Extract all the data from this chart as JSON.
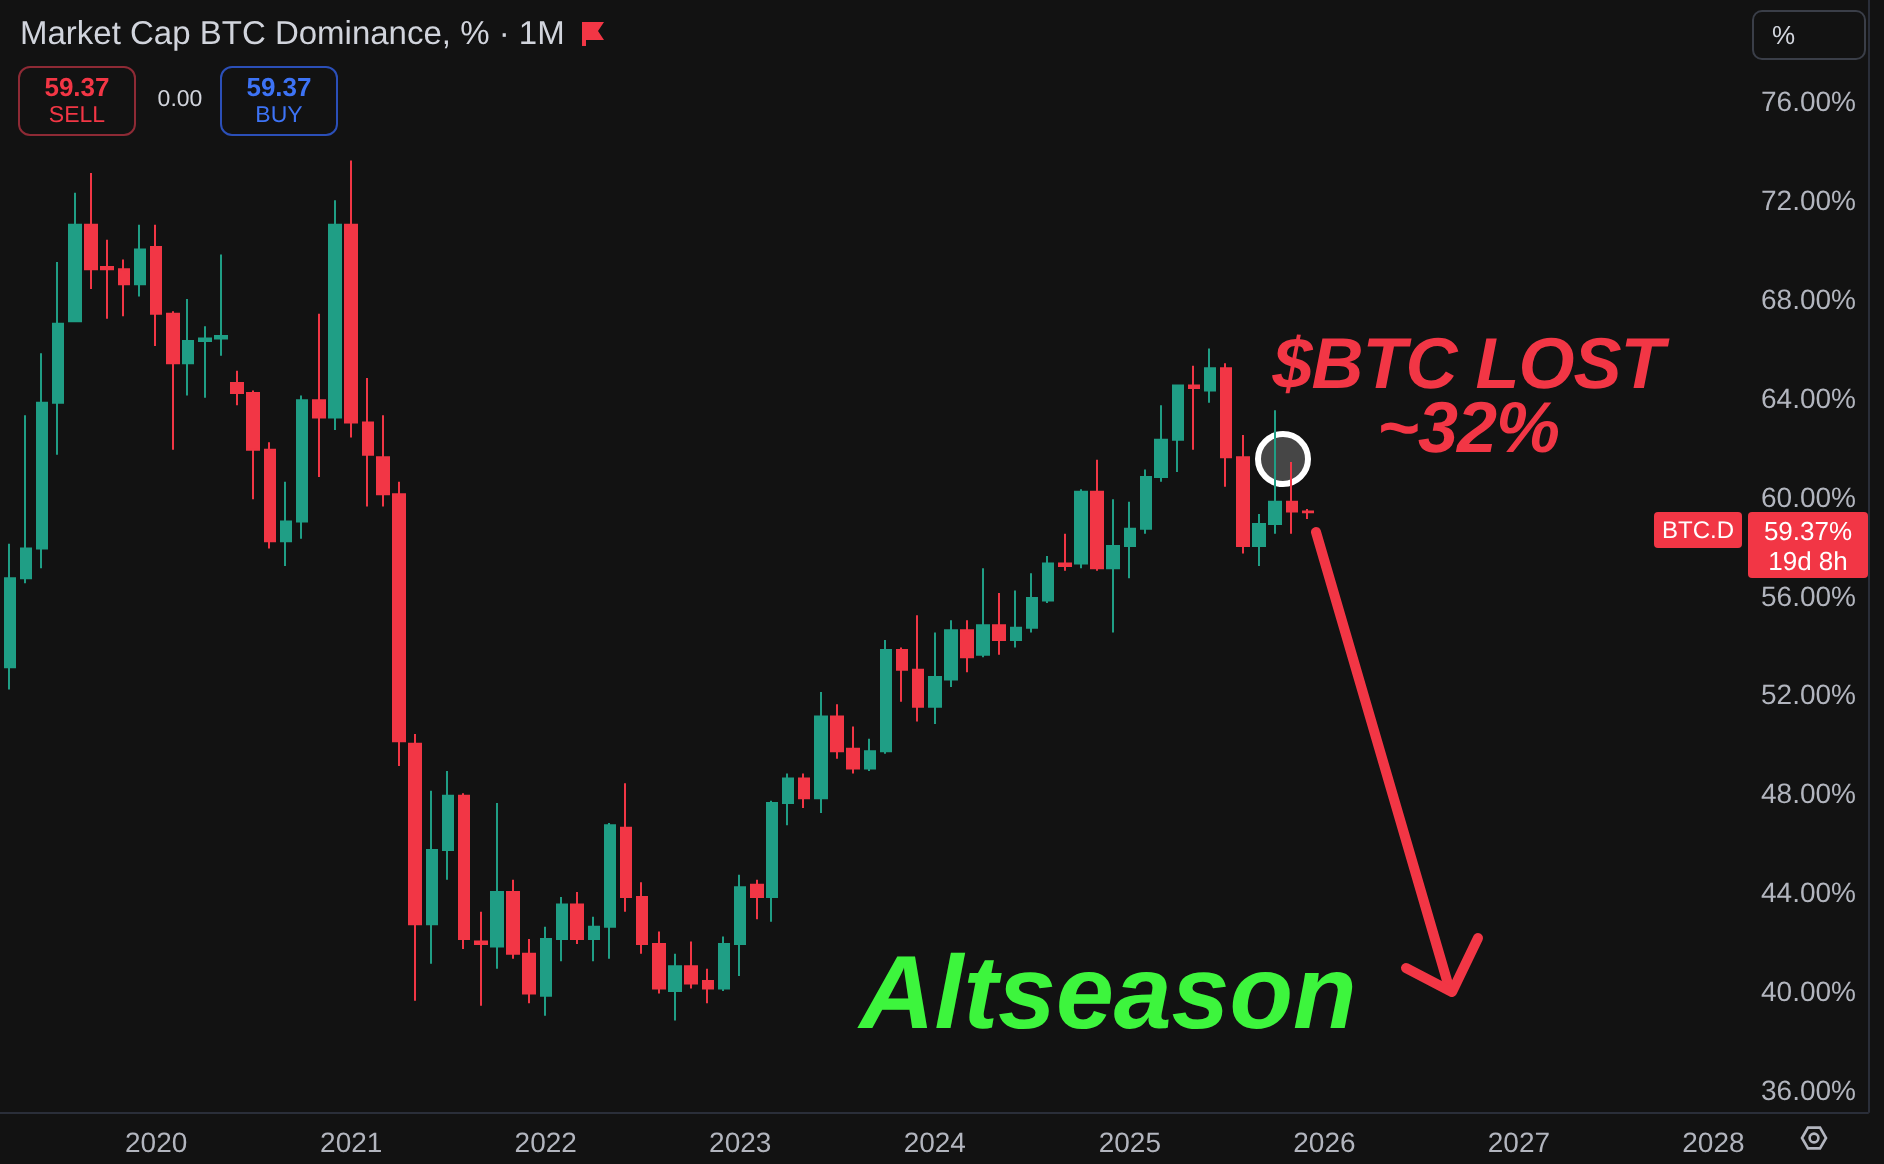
{
  "chart_data": {
    "type": "candlestick",
    "title": "Market Cap BTC Dominance, % · 1M",
    "annotations": [
      "$BTC LOST ~32%",
      "Altseason",
      "59.37",
      "SELL",
      "0.00",
      "59.37",
      "BUY",
      "BTC.D",
      "59.37%",
      "19d 8h",
      "%"
    ],
    "x": [
      "2019-04",
      "2019-05",
      "2019-06",
      "2019-07",
      "2019-08",
      "2019-09",
      "2019-10",
      "2019-11",
      "2019-12",
      "2020-01",
      "2020-02",
      "2020-03",
      "2020-04",
      "2020-05",
      "2020-06",
      "2020-07",
      "2020-08",
      "2020-09",
      "2020-10",
      "2020-11",
      "2020-12",
      "2021-01",
      "2021-02",
      "2021-03",
      "2021-04",
      "2021-05",
      "2021-06",
      "2021-07",
      "2021-08",
      "2021-09",
      "2021-10",
      "2021-11",
      "2021-12",
      "2022-01",
      "2022-02",
      "2022-03",
      "2022-04",
      "2022-05",
      "2022-06",
      "2022-07",
      "2022-08",
      "2022-09",
      "2022-10",
      "2022-11",
      "2022-12",
      "2023-01",
      "2023-02",
      "2023-03",
      "2023-04",
      "2023-05",
      "2023-06",
      "2023-07",
      "2023-08",
      "2023-09",
      "2023-10",
      "2023-11",
      "2023-12",
      "2024-01",
      "2024-02",
      "2024-03",
      "2024-04",
      "2024-05",
      "2024-06",
      "2024-07",
      "2024-08",
      "2024-09",
      "2024-10",
      "2024-11",
      "2024-12",
      "2025-01",
      "2025-02",
      "2025-03",
      "2025-04",
      "2025-05",
      "2025-06",
      "2025-07",
      "2025-08",
      "2025-09",
      "2025-10",
      "2025-11",
      "2025-12"
    ],
    "ohlc": [
      [
        53.1,
        58.1,
        52.2,
        56.7
      ],
      [
        56.7,
        63.3,
        56.5,
        57.9
      ],
      [
        57.9,
        65.8,
        57.1,
        63.8
      ],
      [
        63.8,
        69.5,
        61.7,
        67.0
      ],
      [
        67.1,
        72.3,
        67.1,
        71.0
      ],
      [
        71.0,
        73.1,
        68.4,
        69.2
      ],
      [
        69.3,
        70.4,
        67.2,
        69.2
      ],
      [
        69.2,
        69.6,
        67.3,
        68.6
      ],
      [
        68.6,
        71.0,
        68.1,
        70.0
      ],
      [
        70.1,
        71.0,
        66.1,
        67.4
      ],
      [
        67.4,
        67.5,
        61.9,
        65.4
      ],
      [
        65.4,
        68.0,
        64.1,
        66.3
      ],
      [
        66.3,
        66.9,
        64.0,
        66.4
      ],
      [
        66.4,
        69.8,
        65.7,
        66.5
      ],
      [
        64.6,
        65.1,
        63.7,
        64.2
      ],
      [
        64.2,
        64.3,
        59.9,
        61.9
      ],
      [
        61.9,
        62.2,
        57.9,
        58.2
      ],
      [
        58.2,
        60.6,
        57.2,
        59.0
      ],
      [
        59.0,
        64.1,
        58.3,
        63.9
      ],
      [
        63.9,
        67.4,
        60.8,
        63.2
      ],
      [
        63.2,
        72.0,
        62.7,
        71.0
      ],
      [
        71.0,
        73.6,
        62.4,
        63.0
      ],
      [
        63.0,
        64.8,
        59.6,
        61.7
      ],
      [
        61.6,
        63.3,
        59.6,
        60.1
      ],
      [
        60.1,
        60.6,
        49.1,
        50.1
      ],
      [
        50.0,
        50.4,
        39.6,
        42.7
      ],
      [
        42.7,
        48.1,
        41.1,
        45.7
      ],
      [
        45.7,
        48.9,
        44.5,
        47.9
      ],
      [
        47.9,
        48.0,
        41.7,
        42.1
      ],
      [
        42.0,
        43.2,
        39.4,
        41.9
      ],
      [
        41.8,
        47.6,
        40.9,
        44.0
      ],
      [
        44.0,
        44.5,
        41.3,
        41.5
      ],
      [
        41.5,
        42.1,
        39.5,
        39.9
      ],
      [
        39.8,
        42.6,
        39.0,
        42.1
      ],
      [
        42.1,
        43.8,
        41.2,
        43.5
      ],
      [
        43.5,
        44.0,
        41.9,
        42.1
      ],
      [
        42.1,
        43.0,
        41.2,
        42.6
      ],
      [
        42.6,
        46.8,
        41.3,
        46.7
      ],
      [
        46.6,
        48.4,
        43.2,
        43.8
      ],
      [
        43.8,
        44.4,
        41.5,
        41.9
      ],
      [
        41.9,
        42.4,
        39.9,
        40.1
      ],
      [
        40.0,
        41.5,
        38.8,
        41.0
      ],
      [
        41.0,
        42.0,
        40.1,
        40.3
      ],
      [
        40.4,
        40.9,
        39.5,
        40.1
      ],
      [
        40.1,
        42.2,
        40.0,
        41.9
      ],
      [
        41.9,
        44.7,
        40.6,
        44.2
      ],
      [
        44.3,
        44.5,
        42.9,
        43.8
      ],
      [
        43.8,
        47.7,
        42.8,
        47.6
      ],
      [
        47.6,
        48.8,
        46.7,
        48.6
      ],
      [
        48.6,
        48.8,
        47.4,
        47.8
      ],
      [
        47.8,
        52.1,
        47.2,
        51.1
      ],
      [
        51.1,
        51.6,
        49.4,
        49.7
      ],
      [
        49.8,
        50.7,
        48.8,
        49.0
      ],
      [
        49.0,
        50.2,
        48.9,
        49.7
      ],
      [
        49.7,
        54.2,
        49.6,
        53.8
      ],
      [
        53.8,
        53.9,
        51.7,
        53.0
      ],
      [
        53.0,
        55.2,
        50.9,
        51.5
      ],
      [
        51.5,
        54.5,
        50.8,
        52.7
      ],
      [
        52.6,
        55.0,
        52.3,
        54.6
      ],
      [
        54.6,
        55.0,
        52.9,
        53.5
      ],
      [
        53.6,
        57.1,
        53.5,
        54.8
      ],
      [
        54.8,
        56.1,
        53.6,
        54.2
      ],
      [
        54.2,
        56.2,
        53.9,
        54.7
      ],
      [
        54.7,
        56.9,
        54.5,
        55.9
      ],
      [
        55.8,
        57.6,
        55.7,
        57.3
      ],
      [
        57.3,
        58.5,
        57.0,
        57.2
      ],
      [
        57.3,
        60.3,
        57.1,
        60.2
      ],
      [
        60.2,
        61.5,
        57.0,
        57.1
      ],
      [
        57.1,
        59.9,
        54.5,
        58.0
      ],
      [
        58.0,
        59.8,
        56.7,
        58.7
      ],
      [
        58.7,
        61.1,
        58.5,
        60.8
      ],
      [
        60.8,
        63.7,
        60.6,
        62.3
      ],
      [
        62.3,
        64.5,
        61.0,
        64.5
      ],
      [
        64.5,
        65.3,
        61.9,
        64.4
      ],
      [
        64.3,
        66.0,
        63.8,
        65.2
      ],
      [
        65.2,
        65.4,
        60.4,
        61.6
      ],
      [
        61.6,
        62.5,
        57.7,
        58.0
      ],
      [
        58.0,
        59.3,
        57.2,
        58.9
      ],
      [
        58.9,
        63.5,
        58.5,
        59.8
      ],
      [
        59.8,
        61.4,
        58.5,
        59.4
      ],
      [
        59.4,
        59.5,
        59.1,
        59.37
      ]
    ],
    "colors": [
      "#1f9e85",
      "#1f9e85",
      "#1f9e85",
      "#1f9e85",
      "#1f9e85",
      "#f23645",
      "#f23645",
      "#f23645",
      "#1f9e85",
      "#f23645",
      "#f23645",
      "#1f9e85",
      "#1f9e85",
      "#1f9e85",
      "#f23645",
      "#f23645",
      "#f23645",
      "#1f9e85",
      "#1f9e85",
      "#f23645",
      "#1f9e85",
      "#f23645",
      "#f23645",
      "#f23645",
      "#f23645",
      "#f23645",
      "#1f9e85",
      "#1f9e85",
      "#f23645",
      "#f23645",
      "#1f9e85",
      "#f23645",
      "#f23645",
      "#1f9e85",
      "#1f9e85",
      "#f23645",
      "#1f9e85",
      "#1f9e85",
      "#f23645",
      "#f23645",
      "#f23645",
      "#1f9e85",
      "#f23645",
      "#f23645",
      "#1f9e85",
      "#1f9e85",
      "#f23645",
      "#1f9e85",
      "#1f9e85",
      "#f23645",
      "#1f9e85",
      "#f23645",
      "#f23645",
      "#1f9e85",
      "#1f9e85",
      "#f23645",
      "#f23645",
      "#1f9e85",
      "#1f9e85",
      "#f23645",
      "#1f9e85",
      "#f23645",
      "#1f9e85",
      "#1f9e85",
      "#1f9e85",
      "#f23645",
      "#1f9e85",
      "#f23645",
      "#1f9e85",
      "#1f9e85",
      "#1f9e85",
      "#1f9e85",
      "#1f9e85",
      "#f23645",
      "#1f9e85",
      "#f23645",
      "#f23645",
      "#1f9e85",
      "#1f9e85",
      "#f23645",
      "#f23645"
    ],
    "xlim": [
      "2019-03-14",
      "2028-10-17"
    ],
    "xticks": [
      "2020",
      "2021",
      "2022",
      "2023",
      "2024",
      "2025",
      "2026",
      "2027",
      "2028"
    ],
    "ylim": [
      35.1,
      80.1
    ],
    "yticks": [
      {
        "value": 36,
        "label": "36.00%"
      },
      {
        "value": 40,
        "label": "40.00%"
      },
      {
        "value": 44,
        "label": "44.00%"
      },
      {
        "value": 48,
        "label": "48.00%"
      },
      {
        "value": 52,
        "label": "52.00%"
      },
      {
        "value": 56,
        "label": "56.00%"
      },
      {
        "value": 60,
        "label": "60.00%"
      },
      {
        "value": 64,
        "label": "64.00%"
      },
      {
        "value": 68,
        "label": "68.00%"
      },
      {
        "value": 72,
        "label": "72.00%"
      },
      {
        "value": 76,
        "label": "76.00%"
      }
    ],
    "grid": false
  }
}
